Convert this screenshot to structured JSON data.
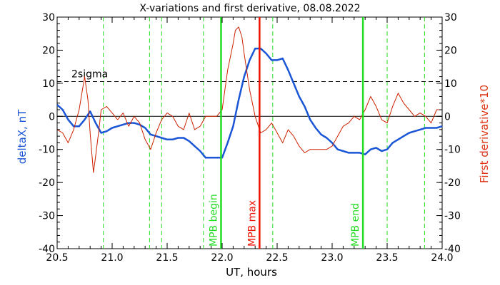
{
  "chart_data": {
    "type": "line",
    "title": "X-variations and first derivative, 08.08.2022",
    "xlabel": "UT, hours",
    "ylabel_left": "deltaX, nT",
    "ylabel_right": "First derivative*10",
    "xlim": [
      20.5,
      24.0
    ],
    "ylim": [
      -40,
      30
    ],
    "x_ticks": [
      20.5,
      21.0,
      21.5,
      22.0,
      22.5,
      23.0,
      23.5,
      24.0
    ],
    "x_tick_labels": [
      "20.5",
      "21.0",
      "21.5",
      "22.0",
      "22.5",
      "23.0",
      "23.5",
      "24.0"
    ],
    "y_ticks": [
      -40,
      -30,
      -20,
      -10,
      0,
      10,
      20,
      30
    ],
    "y_tick_labels": [
      "-40",
      "-30",
      "-20",
      "-10",
      "0",
      "10",
      "20",
      "30"
    ],
    "colors": {
      "deltaX": "#1a56d6",
      "derivative": "#cc2200",
      "green_markers": "#22dd22",
      "red_marker": "#ee1100",
      "left_label": "#1a56d6",
      "right_label": "#dd3311"
    },
    "series": [
      {
        "name": "deltaX, nT",
        "axis": "left",
        "x": [
          20.5,
          20.55,
          20.6,
          20.65,
          20.7,
          20.75,
          20.8,
          20.85,
          20.9,
          20.95,
          21.0,
          21.05,
          21.1,
          21.15,
          21.2,
          21.25,
          21.3,
          21.35,
          21.4,
          21.45,
          21.5,
          21.55,
          21.6,
          21.65,
          21.7,
          21.75,
          21.8,
          21.85,
          21.9,
          21.95,
          22.0,
          22.05,
          22.1,
          22.15,
          22.2,
          22.25,
          22.3,
          22.35,
          22.4,
          22.45,
          22.5,
          22.55,
          22.6,
          22.65,
          22.7,
          22.75,
          22.8,
          22.85,
          22.9,
          22.95,
          23.0,
          23.05,
          23.1,
          23.15,
          23.2,
          23.25,
          23.3,
          23.35,
          23.4,
          23.45,
          23.5,
          23.55,
          23.6,
          23.65,
          23.7,
          23.75,
          23.8,
          23.85,
          23.9,
          23.95,
          24.0
        ],
        "values": [
          3.5,
          2,
          -1,
          -3,
          -3,
          -1,
          1.5,
          -2,
          -5,
          -4.5,
          -3.5,
          -3,
          -2.5,
          -2,
          -2,
          -2.5,
          -3.5,
          -5.5,
          -6,
          -6.5,
          -7,
          -7,
          -6.5,
          -6.5,
          -7.5,
          -9,
          -10.5,
          -12.5,
          -12.5,
          -12.5,
          -12.5,
          -8,
          -3,
          5,
          12,
          17,
          20.5,
          20.5,
          19,
          17,
          17,
          17.5,
          14,
          10,
          6,
          3,
          -1,
          -3.5,
          -5.5,
          -6.5,
          -8,
          -10,
          -10.5,
          -11,
          -11,
          -11,
          -11.5,
          -10,
          -9.5,
          -10.5,
          -10,
          -8,
          -7,
          -6,
          -5,
          -4.5,
          -4,
          -3.5,
          -3.5,
          -3.5,
          -3
        ]
      },
      {
        "name": "First derivative*10",
        "axis": "right",
        "x": [
          20.5,
          20.55,
          20.6,
          20.65,
          20.7,
          20.73,
          20.75,
          20.78,
          20.8,
          20.83,
          20.85,
          20.88,
          20.9,
          20.95,
          21.0,
          21.05,
          21.1,
          21.15,
          21.2,
          21.25,
          21.3,
          21.35,
          21.4,
          21.45,
          21.5,
          21.55,
          21.6,
          21.65,
          21.7,
          21.75,
          21.8,
          21.85,
          21.9,
          21.95,
          22.0,
          22.05,
          22.1,
          22.12,
          22.15,
          22.18,
          22.2,
          22.25,
          22.3,
          22.35,
          22.4,
          22.45,
          22.5,
          22.55,
          22.6,
          22.65,
          22.7,
          22.75,
          22.8,
          22.85,
          22.9,
          22.95,
          23.0,
          23.05,
          23.1,
          23.15,
          23.2,
          23.25,
          23.3,
          23.35,
          23.4,
          23.45,
          23.5,
          23.55,
          23.6,
          23.65,
          23.7,
          23.75,
          23.8,
          23.85,
          23.9,
          23.95,
          24.0
        ],
        "values": [
          -4,
          -5,
          -8,
          -4,
          2,
          8,
          12,
          5,
          -5,
          -17,
          -12,
          -4,
          2,
          3,
          1,
          -1,
          1,
          -3,
          0,
          -2,
          -7,
          -10,
          -5,
          -1,
          1,
          0,
          -3,
          -4,
          1,
          -4,
          -3,
          0,
          0,
          0,
          2,
          14,
          22,
          26,
          27,
          24,
          19,
          8,
          0,
          -5,
          -4,
          -2,
          -5,
          -8,
          -4,
          -6,
          -9,
          -11,
          -10,
          -10,
          -10,
          -10,
          -9,
          -6,
          -3,
          -2,
          0,
          -1,
          2,
          6,
          3,
          -1,
          -2,
          3,
          7,
          4,
          2,
          0,
          1,
          0,
          -2,
          2,
          2
        ]
      }
    ],
    "reference_lines": [
      {
        "type": "horizontal",
        "axis": "left",
        "value": 10.5,
        "style": "dashed",
        "label": "2sigma"
      },
      {
        "type": "horizontal",
        "axis": "left",
        "value": 0,
        "style": "solid"
      }
    ],
    "vertical_markers": [
      {
        "x": 21.99,
        "label": "MPB begin",
        "color": "#22dd22"
      },
      {
        "x": 22.34,
        "label": "MPB max",
        "color": "#ee1100"
      },
      {
        "x": 23.28,
        "label": "MPB end",
        "color": "#22dd22"
      }
    ],
    "dashed_verticals": [
      20.92,
      21.34,
      21.45,
      21.83,
      22.46,
      23.5,
      23.84
    ]
  }
}
